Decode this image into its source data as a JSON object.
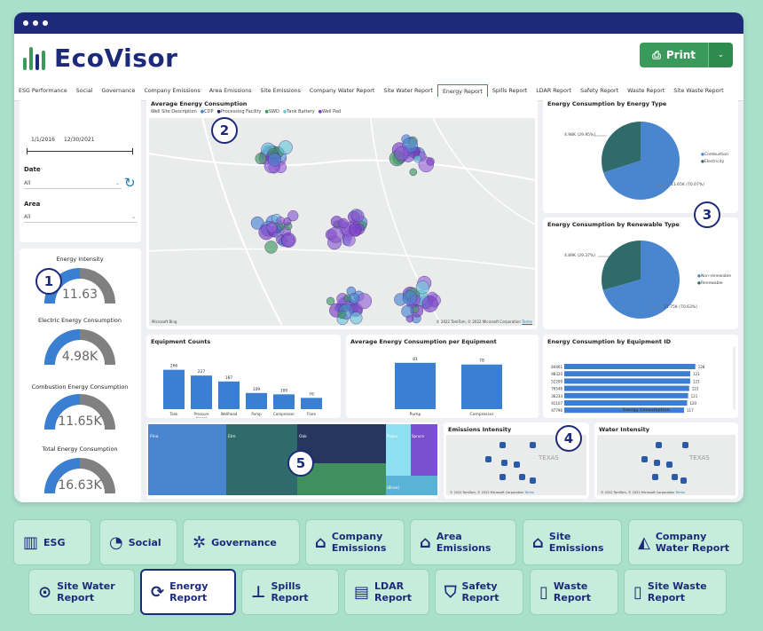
{
  "app": {
    "brand": "EcoVisor",
    "print_label": "Print"
  },
  "tabs": [
    "ESG Performance",
    "Social",
    "Governance",
    "Company Emissions",
    "Area Emissions",
    "Site Emissions",
    "Company Water Report",
    "Site Water Report",
    "Energy Report",
    "Spills Report",
    "LDAR Report",
    "Safety Report",
    "Waste Report",
    "Site Waste Report"
  ],
  "active_tab": "Energy Report",
  "filters": {
    "start_date": "1/1/2016",
    "end_date": "12/30/2021",
    "date_label": "Date",
    "date_value": "All",
    "area_label": "Area",
    "area_value": "All"
  },
  "gauges": [
    {
      "label": "Energy Intensity",
      "value": "11.63"
    },
    {
      "label": "Electric Energy Consumption",
      "value": "4.98K"
    },
    {
      "label": "Combustion Energy Consumption",
      "value": "11.65K"
    },
    {
      "label": "Total Energy Consumption",
      "value": "16.63K"
    }
  ],
  "map_card": {
    "title": "Average Energy Consumption",
    "legend_label": "Well Site Description",
    "legend": [
      "CDP",
      "Processing Facility",
      "SWD",
      "Tank Battery",
      "Well Pad"
    ],
    "credit": "© 2022 TomTom, © 2022 Microsoft Corporation",
    "terms": "Terms",
    "ms_bing": "Microsoft Bing"
  },
  "energy_type": {
    "title": "Energy Consumption by Energy Type",
    "label_a": "4.98K (29.95%)",
    "label_b": "11.65K (70.07%)",
    "legend": [
      "Combustion",
      "Electricity"
    ]
  },
  "renewable_type": {
    "title": "Energy Consumption by Renewable Type",
    "label_a": "4.89K (29.37%)",
    "label_b": "11.75K (70.63%)",
    "legend": [
      "Non-renewable",
      "Renewable"
    ]
  },
  "equipment_counts": {
    "title": "Equipment Counts"
  },
  "avg_per_equipment": {
    "title": "Average Energy Consumption per Equipment"
  },
  "by_equipment_id": {
    "title": "Energy Consumption by Equipment ID",
    "xlabel": "Energy Consumption"
  },
  "treemap": {
    "labels": [
      "Pina",
      "Elm",
      "Oak",
      "Poplar",
      "Spruce",
      "(Blank)"
    ]
  },
  "emissions_map": {
    "title": "Emissions Intensity",
    "place": "TEXAS",
    "credit": "© 2022 TomTom, © 2022 Microsoft Corporation",
    "terms": "Terms"
  },
  "water_map": {
    "title": "Water Intensity",
    "place": "TEXAS",
    "credit": "© 2022 TomTom, © 2022 Microsoft Corporation",
    "terms": "Terms"
  },
  "badges": [
    "1",
    "2",
    "3",
    "4",
    "5"
  ],
  "bottom_nav": [
    {
      "label": "ESG",
      "icon": "monitor-chart-icon"
    },
    {
      "label": "Social",
      "icon": "head-icon"
    },
    {
      "label": "Governance",
      "icon": "network-icon"
    },
    {
      "label": "Company Emissions",
      "icon": "factory-icon"
    },
    {
      "label": "Area Emissions",
      "icon": "factory-pin-icon"
    },
    {
      "label": "Site Emissions",
      "icon": "factory-pin-icon"
    },
    {
      "label": "Company Water Report",
      "icon": "water-drop-icon"
    },
    {
      "label": "Site Water Report",
      "icon": "drop-pin-icon"
    },
    {
      "label": "Energy Report",
      "icon": "energy-cycle-icon"
    },
    {
      "label": "Spills Report",
      "icon": "valve-icon"
    },
    {
      "label": "LDAR Report",
      "icon": "document-search-icon"
    },
    {
      "label": "Safety Report",
      "icon": "shield-icon"
    },
    {
      "label": "Waste Report",
      "icon": "trash-icon"
    },
    {
      "label": "Site Waste Report",
      "icon": "trash-pin-icon"
    }
  ],
  "chart_data": [
    {
      "type": "pie",
      "title": "Energy Consumption by Energy Type",
      "categories": [
        "Electricity",
        "Combustion"
      ],
      "values": [
        4.98,
        11.65
      ],
      "unit": "K",
      "colors": [
        "#2f6b6b",
        "#4a86d0"
      ]
    },
    {
      "type": "pie",
      "title": "Energy Consumption by Renewable Type",
      "categories": [
        "Renewable",
        "Non-renewable"
      ],
      "values": [
        4.89,
        11.75
      ],
      "unit": "K",
      "colors": [
        "#2f6b6b",
        "#4a86d0"
      ]
    },
    {
      "type": "bar",
      "title": "Equipment Counts",
      "categories": [
        "Tank",
        "Pressure Vessel",
        "Wellhead",
        "Pump",
        "Compressor",
        "Flare"
      ],
      "values": [
        266,
        227,
        187,
        109,
        100,
        76
      ]
    },
    {
      "type": "bar",
      "title": "Average Energy Consumption per Equipment",
      "categories": [
        "Pump",
        "Compressor"
      ],
      "values": [
        81,
        78
      ]
    },
    {
      "type": "bar",
      "orientation": "horizontal",
      "title": "Energy Consumption by Equipment ID",
      "categories": [
        "84461",
        "98320",
        "52209",
        "76546",
        "36234",
        "91107",
        "97796"
      ],
      "values": [
        128,
        123,
        123,
        122,
        121,
        120,
        117
      ],
      "xlabel": "Energy Consumption"
    }
  ]
}
